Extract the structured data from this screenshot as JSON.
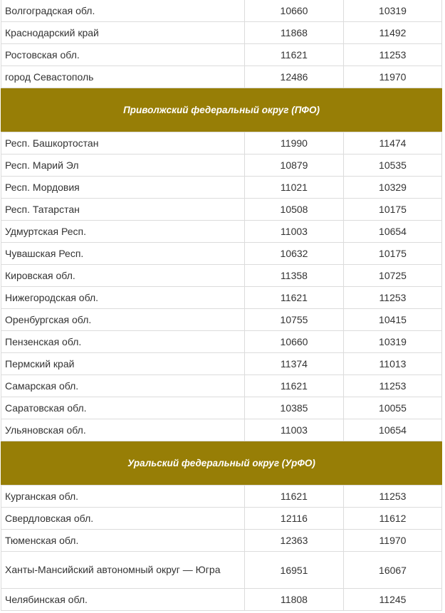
{
  "groups": [
    {
      "rows": [
        {
          "name": "Волгоградская обл.",
          "v1": "10660",
          "v2": "10319"
        },
        {
          "name": "Краснодарский край",
          "v1": "11868",
          "v2": "11492"
        },
        {
          "name": "Ростовская обл.",
          "v1": "11621",
          "v2": "11253"
        },
        {
          "name": "город Севастополь",
          "v1": "12486",
          "v2": "11970"
        }
      ]
    },
    {
      "title": "Приволжский федеральный округ (ПФО)",
      "rows": [
        {
          "name": "Респ. Башкортостан",
          "v1": "11990",
          "v2": "11474"
        },
        {
          "name": "Респ. Марий Эл",
          "v1": "10879",
          "v2": "10535"
        },
        {
          "name": "Респ. Мордовия",
          "v1": "11021",
          "v2": "10329"
        },
        {
          "name": "Респ. Татарстан",
          "v1": "10508",
          "v2": "10175"
        },
        {
          "name": "Удмуртская Респ.",
          "v1": "11003",
          "v2": "10654"
        },
        {
          "name": "Чувашская Респ.",
          "v1": "10632",
          "v2": "10175"
        },
        {
          "name": "Кировская обл.",
          "v1": "11358",
          "v2": "10725"
        },
        {
          "name": "Нижегородская обл.",
          "v1": "11621",
          "v2": "11253"
        },
        {
          "name": "Оренбургская обл.",
          "v1": "10755",
          "v2": "10415"
        },
        {
          "name": "Пензенская обл.",
          "v1": "10660",
          "v2": "10319"
        },
        {
          "name": "Пермский край",
          "v1": "11374",
          "v2": "11013"
        },
        {
          "name": "Самарская обл.",
          "v1": "11621",
          "v2": "11253"
        },
        {
          "name": "Саратовская обл.",
          "v1": "10385",
          "v2": "10055"
        },
        {
          "name": "Ульяновская обл.",
          "v1": "11003",
          "v2": "10654"
        }
      ]
    },
    {
      "title": "Уральский федеральный округ (УрФО)",
      "rows": [
        {
          "name": "Курганская обл.",
          "v1": "11621",
          "v2": "11253"
        },
        {
          "name": "Свердловская обл.",
          "v1": "12116",
          "v2": "11612"
        },
        {
          "name": "Тюменская обл.",
          "v1": "12363",
          "v2": "11970"
        },
        {
          "name": "Ханты-Мансийский автономный округ — Югра",
          "v1": "16951",
          "v2": "16067"
        },
        {
          "name": "Челябинская обл.",
          "v1": "11808",
          "v2": "11245"
        }
      ]
    }
  ],
  "colors": {
    "section_bg": "#977e06",
    "section_text": "#ffffff",
    "text": "#333333",
    "border": "#dcdcdc"
  }
}
